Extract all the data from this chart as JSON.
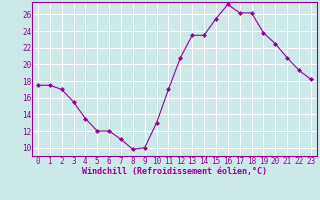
{
  "xlabel": "Windchill (Refroidissement éolien,°C)",
  "x": [
    0,
    1,
    2,
    3,
    4,
    5,
    6,
    7,
    8,
    9,
    10,
    11,
    12,
    13,
    14,
    15,
    16,
    17,
    18,
    19,
    20,
    21,
    22,
    23
  ],
  "y": [
    17.5,
    17.5,
    17.0,
    15.5,
    13.5,
    12.0,
    12.0,
    11.0,
    9.8,
    10.0,
    13.0,
    17.0,
    20.8,
    23.5,
    23.5,
    25.5,
    27.2,
    26.2,
    26.2,
    23.8,
    22.5,
    20.8,
    19.3,
    18.2
  ],
  "line_color": "#990099",
  "marker_color": "#990099",
  "bg_color": "#cce8e8",
  "grid_color": "#ffffff",
  "ylim": [
    9,
    27.5
  ],
  "xlim": [
    -0.5,
    23.5
  ],
  "yticks": [
    10,
    12,
    14,
    16,
    18,
    20,
    22,
    24,
    26
  ],
  "xticks": [
    0,
    1,
    2,
    3,
    4,
    5,
    6,
    7,
    8,
    9,
    10,
    11,
    12,
    13,
    14,
    15,
    16,
    17,
    18,
    19,
    20,
    21,
    22,
    23
  ],
  "tick_fontsize": 5.5,
  "xlabel_fontsize": 6.0
}
